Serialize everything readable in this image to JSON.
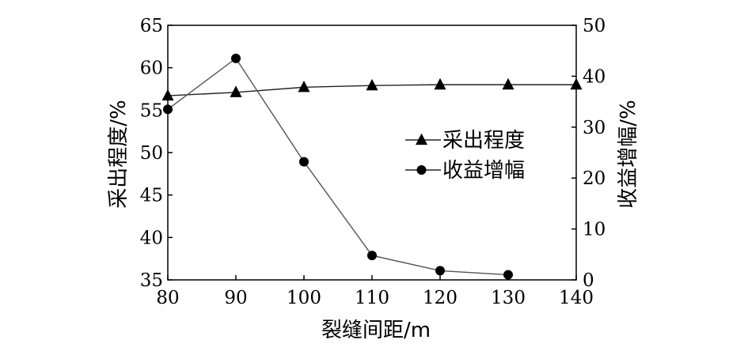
{
  "chart_data": {
    "type": "line",
    "xlabel": "裂缝间距/m",
    "ylabel_left": "采出程度/%",
    "ylabel_right": "收益增幅/%",
    "xlim": [
      80,
      140
    ],
    "ylim_left": [
      35,
      65
    ],
    "ylim_right": [
      0,
      50
    ],
    "x_ticks": [
      "80",
      "90",
      "100",
      "110",
      "120",
      "130",
      "140"
    ],
    "y_left_ticks": [
      "35",
      "40",
      "45",
      "50",
      "55",
      "60",
      "65"
    ],
    "y_right_ticks": [
      "0",
      "10",
      "20",
      "30",
      "40",
      "50"
    ],
    "grid": false,
    "legend_position": "center-right",
    "series": [
      {
        "name": "采出程度",
        "axis": "left",
        "marker": "triangle",
        "x": [
          80,
          90,
          100,
          110,
          120,
          130,
          140
        ],
        "values": [
          56.7,
          57.1,
          57.7,
          57.9,
          58.0,
          58.0,
          58.0
        ]
      },
      {
        "name": "收益增幅",
        "axis": "right",
        "marker": "circle",
        "x": [
          80,
          90,
          100,
          110,
          120,
          130
        ],
        "values": [
          33.5,
          43.5,
          23.2,
          4.8,
          1.8,
          1.0
        ]
      }
    ]
  }
}
